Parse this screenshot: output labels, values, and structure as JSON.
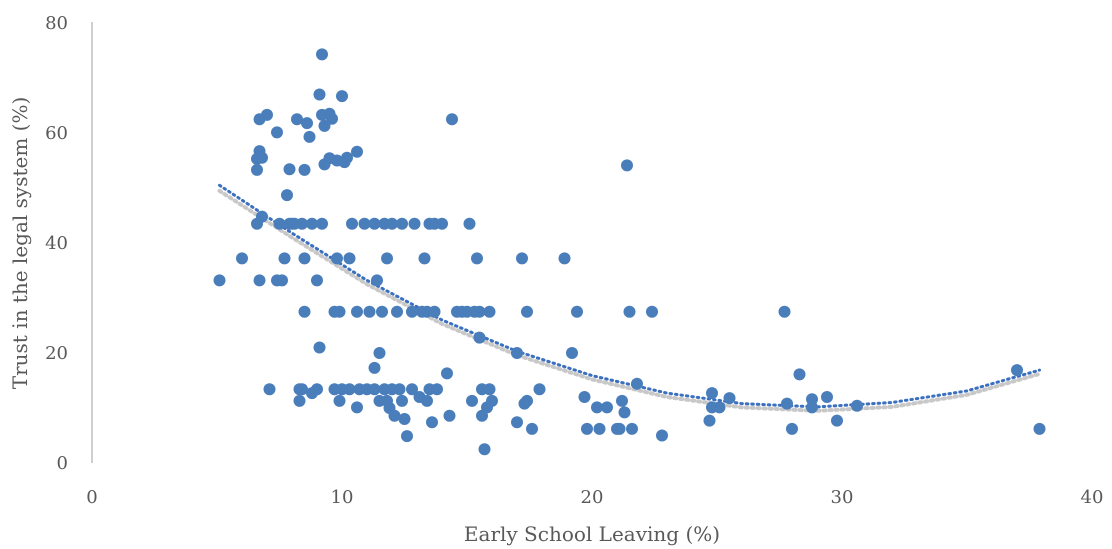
{
  "chart_data": {
    "type": "scatter",
    "title": "",
    "xlabel": "Early School Leaving (%)",
    "ylabel": "Trust in the legal system (%)",
    "xlim": [
      0,
      40
    ],
    "ylim": [
      0,
      80
    ],
    "x_ticks": [
      "0",
      "10",
      "20",
      "30",
      "40"
    ],
    "y_ticks": [
      "0",
      "20",
      "40",
      "60",
      "80"
    ],
    "grid": false,
    "legend": "none",
    "colors": {
      "points": "#4a7ebb",
      "trend_primary": "#3b70c0",
      "trend_secondary": "#c8c8c8"
    },
    "trendlines": [
      {
        "kind": "polynomial-2",
        "x": [
          5.1,
          8,
          11,
          14,
          17,
          20,
          23,
          26,
          29,
          32,
          35,
          37.9
        ],
        "y": [
          50.5,
          41.8,
          33.2,
          26.0,
          20.3,
          15.9,
          12.7,
          10.8,
          10.2,
          11.0,
          13.1,
          16.9
        ]
      },
      {
        "kind": "polynomial-2",
        "x": [
          5.1,
          8,
          11,
          14,
          17,
          20,
          23,
          26,
          29,
          32,
          35,
          37.9
        ],
        "y": [
          49.5,
          41.0,
          32.5,
          25.3,
          19.6,
          15.2,
          12.0,
          10.1,
          9.5,
          10.2,
          12.4,
          16.2
        ]
      }
    ],
    "points": [
      [
        5.1,
        33.2
      ],
      [
        6.0,
        37.2
      ],
      [
        6.6,
        53.3
      ],
      [
        6.6,
        55.3
      ],
      [
        6.7,
        56.7
      ],
      [
        6.7,
        62.5
      ],
      [
        6.8,
        55.5
      ],
      [
        6.6,
        43.5
      ],
      [
        6.8,
        44.8
      ],
      [
        6.7,
        33.2
      ],
      [
        7.0,
        63.3
      ],
      [
        7.1,
        13.4
      ],
      [
        7.4,
        60.1
      ],
      [
        7.4,
        33.2
      ],
      [
        7.5,
        43.5
      ],
      [
        7.6,
        33.2
      ],
      [
        7.7,
        37.2
      ],
      [
        7.8,
        48.7
      ],
      [
        7.9,
        43.5
      ],
      [
        7.9,
        53.4
      ],
      [
        8.0,
        43.5
      ],
      [
        8.1,
        43.5
      ],
      [
        8.2,
        62.5
      ],
      [
        8.3,
        11.3
      ],
      [
        8.3,
        13.4
      ],
      [
        8.4,
        13.4
      ],
      [
        8.4,
        43.5
      ],
      [
        8.5,
        27.5
      ],
      [
        8.5,
        37.2
      ],
      [
        8.5,
        53.3
      ],
      [
        8.6,
        61.8
      ],
      [
        8.7,
        59.3
      ],
      [
        8.8,
        12.7
      ],
      [
        8.8,
        43.5
      ],
      [
        9.0,
        13.4
      ],
      [
        9.0,
        33.2
      ],
      [
        9.1,
        21.0
      ],
      [
        9.1,
        67.0
      ],
      [
        9.2,
        74.3
      ],
      [
        9.2,
        63.3
      ],
      [
        9.2,
        43.5
      ],
      [
        9.3,
        54.3
      ],
      [
        9.3,
        61.3
      ],
      [
        9.5,
        55.4
      ],
      [
        9.5,
        63.5
      ],
      [
        9.6,
        62.6
      ],
      [
        9.7,
        27.5
      ],
      [
        9.7,
        13.4
      ],
      [
        9.8,
        37.2
      ],
      [
        9.8,
        55.0
      ],
      [
        9.9,
        11.3
      ],
      [
        9.9,
        27.5
      ],
      [
        10.0,
        13.4
      ],
      [
        10.0,
        66.7
      ],
      [
        10.1,
        54.7
      ],
      [
        10.2,
        55.5
      ],
      [
        10.3,
        13.4
      ],
      [
        10.3,
        37.2
      ],
      [
        10.4,
        43.5
      ],
      [
        10.6,
        56.6
      ],
      [
        10.6,
        27.5
      ],
      [
        10.6,
        10.1
      ],
      [
        10.7,
        13.4
      ],
      [
        10.9,
        43.5
      ],
      [
        11.0,
        13.4
      ],
      [
        11.1,
        27.5
      ],
      [
        11.3,
        43.5
      ],
      [
        11.3,
        17.3
      ],
      [
        11.3,
        13.4
      ],
      [
        11.4,
        33.2
      ],
      [
        11.5,
        20.0
      ],
      [
        11.5,
        11.3
      ],
      [
        11.6,
        27.5
      ],
      [
        11.7,
        43.5
      ],
      [
        11.7,
        13.4
      ],
      [
        11.8,
        37.2
      ],
      [
        11.8,
        11.3
      ],
      [
        11.9,
        10.0
      ],
      [
        12.0,
        43.5
      ],
      [
        12.0,
        13.4
      ],
      [
        12.1,
        8.6
      ],
      [
        12.2,
        27.5
      ],
      [
        12.3,
        13.4
      ],
      [
        12.4,
        11.3
      ],
      [
        12.4,
        43.5
      ],
      [
        12.5,
        8.0
      ],
      [
        12.6,
        4.9
      ],
      [
        12.8,
        13.4
      ],
      [
        12.8,
        27.5
      ],
      [
        12.9,
        43.5
      ],
      [
        13.1,
        12.0
      ],
      [
        13.2,
        27.5
      ],
      [
        13.3,
        37.2
      ],
      [
        13.4,
        11.3
      ],
      [
        13.4,
        27.5
      ],
      [
        13.5,
        43.5
      ],
      [
        13.5,
        13.4
      ],
      [
        13.6,
        7.4
      ],
      [
        13.7,
        27.5
      ],
      [
        13.7,
        43.5
      ],
      [
        13.8,
        13.4
      ],
      [
        14.0,
        43.5
      ],
      [
        14.2,
        16.3
      ],
      [
        14.3,
        8.6
      ],
      [
        14.4,
        62.5
      ],
      [
        14.6,
        27.5
      ],
      [
        14.8,
        27.5
      ],
      [
        15.0,
        27.5
      ],
      [
        15.1,
        43.5
      ],
      [
        15.2,
        11.3
      ],
      [
        15.3,
        27.5
      ],
      [
        15.4,
        37.2
      ],
      [
        15.5,
        22.8
      ],
      [
        15.5,
        27.5
      ],
      [
        15.6,
        13.4
      ],
      [
        15.6,
        8.6
      ],
      [
        15.7,
        2.5
      ],
      [
        15.8,
        10.1
      ],
      [
        15.9,
        13.4
      ],
      [
        15.9,
        27.5
      ],
      [
        16.0,
        11.3
      ],
      [
        17.0,
        7.4
      ],
      [
        17.0,
        20.0
      ],
      [
        17.2,
        37.2
      ],
      [
        17.3,
        10.8
      ],
      [
        17.4,
        27.5
      ],
      [
        17.4,
        11.3
      ],
      [
        17.6,
        6.2
      ],
      [
        17.9,
        13.4
      ],
      [
        18.9,
        37.2
      ],
      [
        19.2,
        20.0
      ],
      [
        19.4,
        27.5
      ],
      [
        19.7,
        12.0
      ],
      [
        19.8,
        6.2
      ],
      [
        20.2,
        10.1
      ],
      [
        20.3,
        6.2
      ],
      [
        20.6,
        10.1
      ],
      [
        21.0,
        6.2
      ],
      [
        21.1,
        6.2
      ],
      [
        21.2,
        11.3
      ],
      [
        21.3,
        9.2
      ],
      [
        21.4,
        54.1
      ],
      [
        21.5,
        27.5
      ],
      [
        21.6,
        6.2
      ],
      [
        21.8,
        14.4
      ],
      [
        22.4,
        27.5
      ],
      [
        22.8,
        5.0
      ],
      [
        24.7,
        7.7
      ],
      [
        24.8,
        12.7
      ],
      [
        24.8,
        10.1
      ],
      [
        25.1,
        10.1
      ],
      [
        25.5,
        11.8
      ],
      [
        27.7,
        27.5
      ],
      [
        27.8,
        10.8
      ],
      [
        28.0,
        6.2
      ],
      [
        28.3,
        16.1
      ],
      [
        28.8,
        10.1
      ],
      [
        28.8,
        11.6
      ],
      [
        29.4,
        12.0
      ],
      [
        29.8,
        7.7
      ],
      [
        30.6,
        10.4
      ],
      [
        37.0,
        16.9
      ],
      [
        37.9,
        6.2
      ]
    ]
  }
}
